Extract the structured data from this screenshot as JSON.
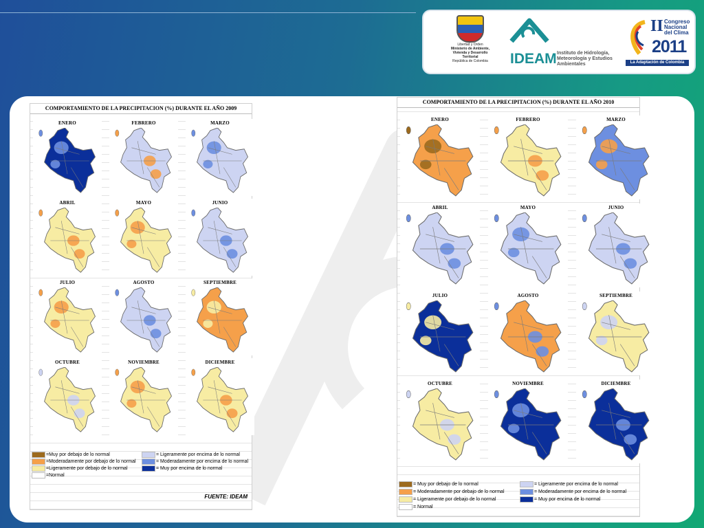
{
  "logos": {
    "ministerio": {
      "motto": "Libertad y Orden",
      "line1": "Ministerio de Ambiente,",
      "line2": "Vivienda y Desarrollo Territorial",
      "line3": "República de Colombia"
    },
    "ideam": {
      "name": "IDEAM",
      "subtitle": "Instituto de Hidrología, Meteorología y Estudios Ambientales"
    },
    "congreso": {
      "roman": "II",
      "line": "Congreso Nacional del Clima",
      "year": "2011",
      "tagline": "La Adaptación de Colombia"
    }
  },
  "colors": {
    "muy_debajo": "#9c6a1e",
    "mod_debajo": "#f5a04a",
    "lig_debajo": "#f7eca3",
    "normal": "#ffffff",
    "lig_encima": "#cdd4f2",
    "mod_encima": "#6d8fe0",
    "muy_encima": "#0b2f9a"
  },
  "panel2009": {
    "title": "COMPORTAMIENTO DE LA PRECIPITACION (%) DURANTE EL AÑO 2009",
    "months": [
      {
        "label": "ENERO",
        "dominant": "muy_encima",
        "accent": "mod_encima"
      },
      {
        "label": "FEBRERO",
        "dominant": "lig_encima",
        "accent": "mod_debajo"
      },
      {
        "label": "MARZO",
        "dominant": "lig_encima",
        "accent": "mod_encima"
      },
      {
        "label": "ABRIL",
        "dominant": "lig_debajo",
        "accent": "mod_debajo"
      },
      {
        "label": "MAYO",
        "dominant": "lig_debajo",
        "accent": "mod_debajo"
      },
      {
        "label": "JUNIO",
        "dominant": "lig_encima",
        "accent": "mod_encima"
      },
      {
        "label": "JULIO",
        "dominant": "lig_debajo",
        "accent": "mod_debajo"
      },
      {
        "label": "AGOSTO",
        "dominant": "lig_encima",
        "accent": "mod_encima"
      },
      {
        "label": "SEPTIEMBRE",
        "dominant": "mod_debajo",
        "accent": "lig_debajo"
      },
      {
        "label": "OCTUBRE",
        "dominant": "lig_debajo",
        "accent": "lig_encima"
      },
      {
        "label": "NOVIEMBRE",
        "dominant": "lig_debajo",
        "accent": "mod_debajo"
      },
      {
        "label": "DICIEMBRE",
        "dominant": "lig_debajo",
        "accent": "mod_debajo"
      }
    ],
    "legend": [
      {
        "key": "muy_debajo",
        "text": "=Muy por debajo de lo normal"
      },
      {
        "key": "mod_debajo",
        "text": "=Moderadamente por debajo de lo normal"
      },
      {
        "key": "lig_debajo",
        "text": "=Ligeramente por debajo de lo normal"
      },
      {
        "key": "normal",
        "text": "=Normal"
      },
      {
        "key": "lig_encima",
        "text": "= Ligeramente por encima de lo normal"
      },
      {
        "key": "mod_encima",
        "text": "= Moderadamente por encima de lo normal"
      },
      {
        "key": "muy_encima",
        "text": "= Muy por encima de lo normal"
      }
    ],
    "source": "FUENTE: IDEAM"
  },
  "panel2010": {
    "title": "COMPORTAMIENTO DE LA PRECIPITACION (%) DURANTE EL AÑO 2010",
    "months": [
      {
        "label": "ENERO",
        "dominant": "mod_debajo",
        "accent": "muy_debajo"
      },
      {
        "label": "FEBRERO",
        "dominant": "lig_debajo",
        "accent": "mod_debajo"
      },
      {
        "label": "MARZO",
        "dominant": "mod_encima",
        "accent": "mod_debajo"
      },
      {
        "label": "ABRIL",
        "dominant": "lig_encima",
        "accent": "mod_encima"
      },
      {
        "label": "MAYO",
        "dominant": "lig_encima",
        "accent": "mod_encima"
      },
      {
        "label": "JUNIO",
        "dominant": "lig_encima",
        "accent": "mod_encima"
      },
      {
        "label": "JULIO",
        "dominant": "muy_encima",
        "accent": "lig_debajo"
      },
      {
        "label": "AGOSTO",
        "dominant": "mod_debajo",
        "accent": "mod_encima"
      },
      {
        "label": "SEPTIEMBRE",
        "dominant": "lig_debajo",
        "accent": "lig_encima"
      },
      {
        "label": "OCTUBRE",
        "dominant": "lig_debajo",
        "accent": "lig_encima"
      },
      {
        "label": "NOVIEMBRE",
        "dominant": "muy_encima",
        "accent": "mod_encima"
      },
      {
        "label": "DICIEMBRE",
        "dominant": "muy_encima",
        "accent": "mod_encima"
      }
    ],
    "legend": [
      {
        "key": "muy_debajo",
        "text": "= Muy por debajo de lo normal"
      },
      {
        "key": "mod_debajo",
        "text": "= Moderadamente por debajo de lo normal"
      },
      {
        "key": "lig_debajo",
        "text": "= Ligeramente por debajo de lo normal"
      },
      {
        "key": "normal",
        "text": "= Normal"
      },
      {
        "key": "lig_encima",
        "text": "= Ligeramente por encima de lo normal"
      },
      {
        "key": "mod_encima",
        "text": "= Moderadamente por encima de lo normal"
      },
      {
        "key": "muy_encima",
        "text": "= Muy por encima de lo normal"
      }
    ]
  }
}
